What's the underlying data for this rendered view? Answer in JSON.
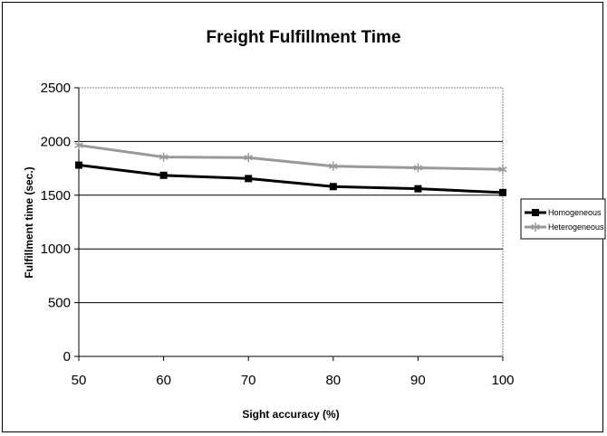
{
  "chart_data": {
    "type": "line",
    "title": "Freight Fulfillment Time",
    "xlabel": "Sight accuracy (%)",
    "ylabel": "Fulfillment time (sec.)",
    "x": [
      50,
      60,
      70,
      80,
      90,
      100
    ],
    "xticks": [
      "50",
      "60",
      "70",
      "80",
      "90",
      "100"
    ],
    "ylim": [
      0,
      2500
    ],
    "yticks": [
      "0",
      "500",
      "1000",
      "1500",
      "2000",
      "2500"
    ],
    "grid": true,
    "legend_position": "right",
    "series": [
      {
        "name": "Homogeneous",
        "values": [
          1780,
          1685,
          1655,
          1580,
          1560,
          1525
        ],
        "color": "#000000",
        "marker": "square"
      },
      {
        "name": "Heterogeneous",
        "values": [
          1965,
          1855,
          1850,
          1770,
          1755,
          1740
        ],
        "color": "#999999",
        "marker": "star"
      }
    ]
  }
}
